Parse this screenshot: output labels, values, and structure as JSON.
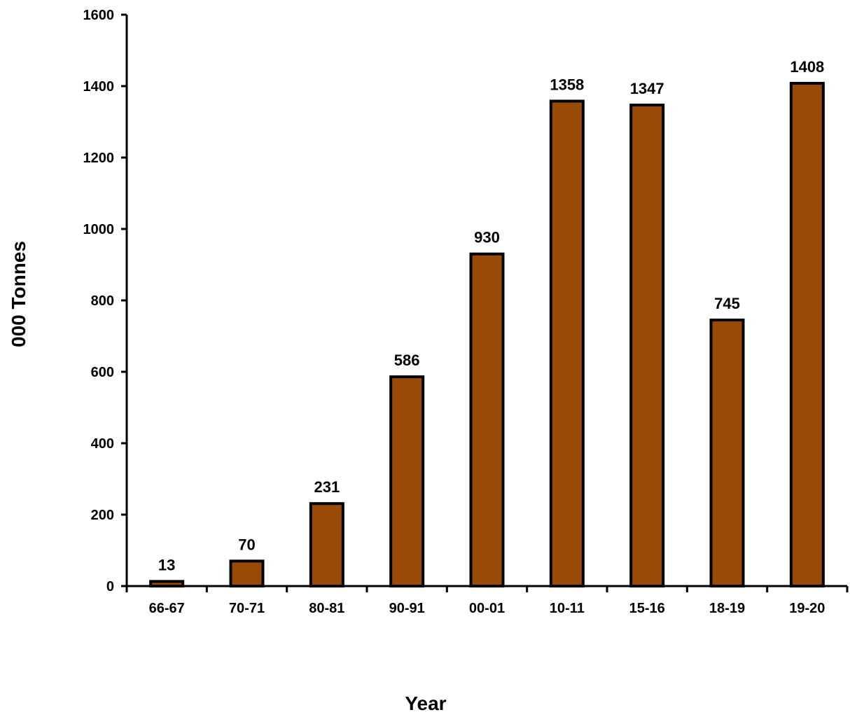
{
  "chart_data": {
    "type": "bar",
    "title": "",
    "xlabel": "Year",
    "ylabel": "000 Tonnes",
    "categories": [
      "66-67",
      "70-71",
      "80-81",
      "90-91",
      "00-01",
      "10-11",
      "15-16",
      "18-19",
      "19-20"
    ],
    "values": [
      13,
      70,
      231,
      586,
      930,
      1358,
      1347,
      745,
      1408
    ],
    "data_labels": [
      "13",
      "70",
      "231",
      "586",
      "930",
      "1358",
      "1347",
      "745",
      "1408"
    ],
    "ylim": [
      0,
      1600
    ],
    "yticks": [
      0,
      200,
      400,
      600,
      800,
      1000,
      1200,
      1400,
      1600
    ],
    "ytick_labels": [
      "0",
      "200",
      "400",
      "600",
      "800",
      "1000",
      "1200",
      "1400",
      "1600"
    ],
    "grid": false,
    "legend": "none",
    "bar_color": "#994A07",
    "bar_edge_color": "#000000"
  }
}
